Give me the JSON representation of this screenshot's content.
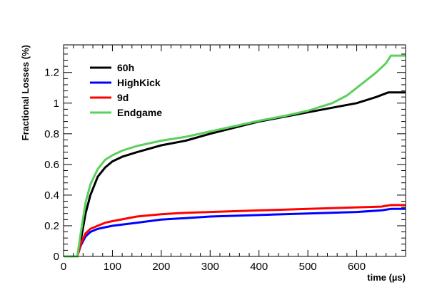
{
  "chart_data": {
    "type": "line",
    "xlabel": "time (µs)",
    "ylabel": "Fractional Losses (%)",
    "xlim": [
      0,
      700
    ],
    "ylim": [
      0,
      1.38
    ],
    "x_ticks": [
      0,
      100,
      200,
      300,
      400,
      500,
      600
    ],
    "y_ticks": [
      0,
      0.2,
      0.4,
      0.6,
      0.8,
      1,
      1.2
    ],
    "x_tick_labels": [
      "0",
      "100",
      "200",
      "300",
      "400",
      "500",
      "600"
    ],
    "y_tick_labels": [
      "0",
      "0.2",
      "0.4",
      "0.6",
      "0.8",
      "1",
      "1.2"
    ],
    "grid": false,
    "legend_position": "top-left",
    "series": [
      {
        "name": "60h",
        "color": "#000000",
        "x": [
          0,
          28,
          35,
          45,
          55,
          70,
          85,
          100,
          120,
          150,
          200,
          250,
          300,
          350,
          400,
          450,
          500,
          550,
          600,
          640,
          665,
          700
        ],
        "y": [
          0,
          0,
          0.1,
          0.28,
          0.4,
          0.52,
          0.58,
          0.62,
          0.65,
          0.68,
          0.725,
          0.755,
          0.8,
          0.84,
          0.88,
          0.91,
          0.94,
          0.97,
          1.0,
          1.04,
          1.07,
          1.07
        ]
      },
      {
        "name": "HighKick",
        "color": "#0000ff",
        "x": [
          0,
          28,
          35,
          45,
          55,
          70,
          85,
          100,
          150,
          200,
          250,
          300,
          400,
          500,
          600,
          650,
          670,
          700
        ],
        "y": [
          0,
          0,
          0.07,
          0.13,
          0.16,
          0.18,
          0.19,
          0.2,
          0.22,
          0.24,
          0.25,
          0.26,
          0.27,
          0.28,
          0.29,
          0.3,
          0.31,
          0.31
        ]
      },
      {
        "name": "9d",
        "color": "#ff0000",
        "x": [
          0,
          28,
          35,
          45,
          55,
          70,
          85,
          100,
          150,
          200,
          250,
          300,
          400,
          500,
          600,
          650,
          670,
          700
        ],
        "y": [
          0,
          0,
          0.08,
          0.15,
          0.18,
          0.2,
          0.22,
          0.23,
          0.26,
          0.275,
          0.285,
          0.29,
          0.3,
          0.31,
          0.32,
          0.325,
          0.335,
          0.335
        ]
      },
      {
        "name": "Endgame",
        "color": "#5ccf5c",
        "x": [
          0,
          28,
          35,
          45,
          55,
          70,
          85,
          100,
          120,
          150,
          200,
          250,
          300,
          350,
          400,
          450,
          500,
          550,
          580,
          600,
          620,
          640,
          660,
          670,
          700
        ],
        "y": [
          0,
          0,
          0.15,
          0.35,
          0.47,
          0.57,
          0.63,
          0.66,
          0.69,
          0.72,
          0.755,
          0.78,
          0.815,
          0.85,
          0.885,
          0.915,
          0.95,
          1.0,
          1.05,
          1.1,
          1.15,
          1.2,
          1.26,
          1.31,
          1.31
        ]
      }
    ]
  }
}
